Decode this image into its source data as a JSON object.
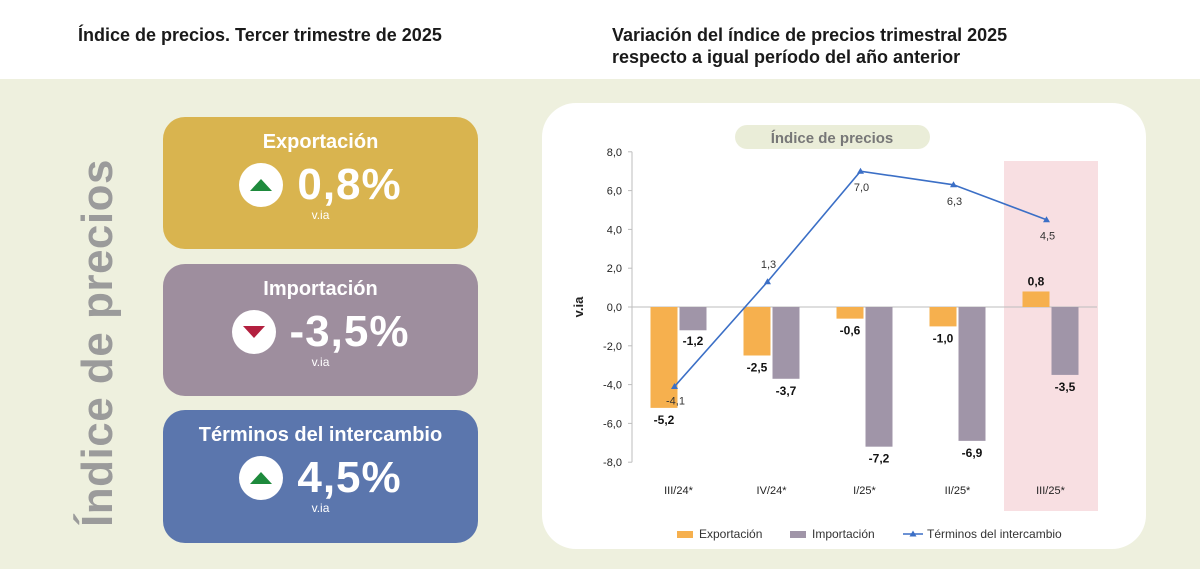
{
  "headers": {
    "left": "Índice de precios. Tercer trimestre de 2025",
    "right_line1": "Variación del índice de precios trimestral 2025",
    "right_line2": "respecto a igual período del año anterior"
  },
  "side_title": "Índice de precios",
  "cards": [
    {
      "title": "Exportación",
      "value": "0,8%",
      "unit": "v.ia",
      "trend": "up",
      "color": "#d9b44f"
    },
    {
      "title": "Importación",
      "value": "-3,5%",
      "unit": "v.ia",
      "trend": "down",
      "color": "#9e8e9e"
    },
    {
      "title": "Términos del intercambio",
      "value": "4,5%",
      "unit": "v.ia",
      "trend": "up",
      "color": "#5b76ad"
    }
  ],
  "chart_data": {
    "type": "bar",
    "title": "Índice de precios",
    "ylabel": "v.ia",
    "ylim": [
      -8,
      8
    ],
    "yticks": [
      8,
      6,
      4,
      2,
      0,
      -2,
      -4,
      -6,
      -8
    ],
    "ytick_labels": [
      "8,0",
      "6,0",
      "4,0",
      "2,0",
      "0,0",
      "-2,0",
      "-4,0",
      "-6,0",
      "-8,0"
    ],
    "categories": [
      "III/24*",
      "IV/24*",
      "I/25*",
      "II/25*",
      "III/25*"
    ],
    "highlight_category": "III/25*",
    "series": [
      {
        "name": "Exportación",
        "type": "bar",
        "color": "#f6b04e",
        "values": [
          -5.2,
          -2.5,
          -0.6,
          -1.0,
          0.8
        ],
        "labels": [
          "-5,2",
          "-2,5",
          "-0,6",
          "-1,0",
          "0,8"
        ]
      },
      {
        "name": "Importación",
        "type": "bar",
        "color": "#a095a8",
        "values": [
          -1.2,
          -3.7,
          -7.2,
          -6.9,
          -3.5
        ],
        "labels": [
          "-1,2",
          "-3,7",
          "-7,2",
          "-6,9",
          "-3,5"
        ]
      },
      {
        "name": "Términos del intercambio",
        "type": "line",
        "color": "#3b6fc6",
        "values": [
          -4.1,
          1.3,
          7.0,
          6.3,
          4.5
        ],
        "labels": [
          "-4,1",
          "1,3",
          "7,0",
          "6,3",
          "4,5"
        ]
      }
    ],
    "legend_position": "bottom",
    "grid": false
  }
}
